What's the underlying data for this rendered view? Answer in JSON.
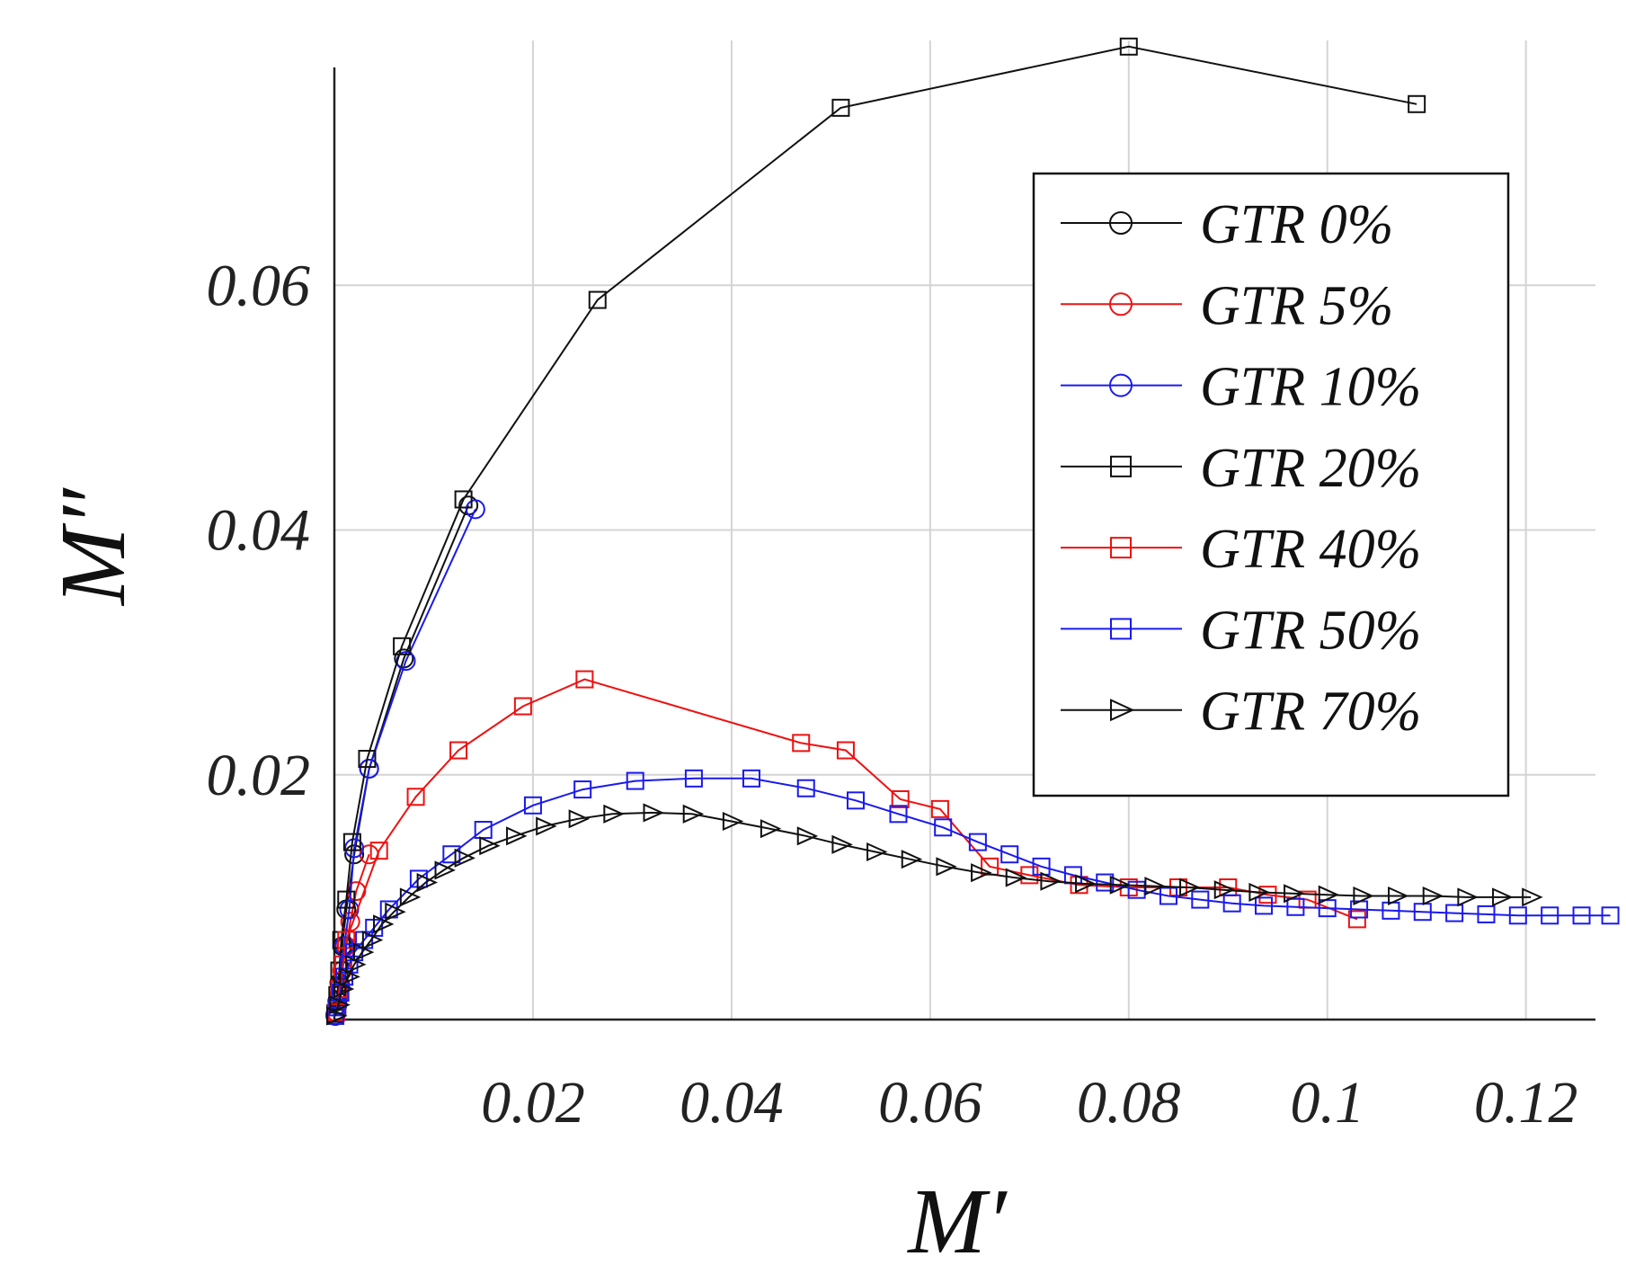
{
  "chart_data": {
    "type": "line",
    "title": "",
    "xlabel": "M′",
    "ylabel": "M″",
    "xlim": [
      0,
      0.127
    ],
    "ylim": [
      0,
      0.08
    ],
    "grid": true,
    "legend_position": "top-right",
    "xticks": [
      {
        "value": 0.02,
        "label": "0.02"
      },
      {
        "value": 0.04,
        "label": "0.04"
      },
      {
        "value": 0.06,
        "label": "0.06"
      },
      {
        "value": 0.08,
        "label": "0.08"
      },
      {
        "value": 0.1,
        "label": "0.1"
      },
      {
        "value": 0.12,
        "label": "0.12"
      }
    ],
    "yticks": [
      {
        "value": 0.02,
        "label": "0.02"
      },
      {
        "value": 0.04,
        "label": "0.04"
      },
      {
        "value": 0.06,
        "label": "0.06"
      }
    ],
    "series": [
      {
        "name": "GTR 0%",
        "color": "#111111",
        "marker": "circle",
        "points": [
          [
            0.0001,
            0.0003
          ],
          [
            0.0003,
            0.0015
          ],
          [
            0.0005,
            0.003
          ],
          [
            0.0008,
            0.006
          ],
          [
            0.0012,
            0.009
          ],
          [
            0.002,
            0.0135
          ],
          [
            0.0035,
            0.0205
          ],
          [
            0.007,
            0.0295
          ],
          [
            0.0135,
            0.042
          ]
        ]
      },
      {
        "name": "GTR 5%",
        "color": "#ee1111",
        "marker": "circle",
        "points": [
          [
            0.0002,
            0.0006
          ],
          [
            0.0005,
            0.002
          ],
          [
            0.0008,
            0.004
          ],
          [
            0.0012,
            0.006
          ],
          [
            0.0016,
            0.008
          ],
          [
            0.0022,
            0.0105
          ],
          [
            0.0035,
            0.0135
          ]
        ]
      },
      {
        "name": "GTR 10%",
        "color": "#1a1aee",
        "marker": "circle",
        "points": [
          [
            0.0001,
            0.0004
          ],
          [
            0.0003,
            0.0012
          ],
          [
            0.0006,
            0.0028
          ],
          [
            0.001,
            0.006
          ],
          [
            0.0015,
            0.009
          ],
          [
            0.002,
            0.014
          ],
          [
            0.0035,
            0.0205
          ],
          [
            0.0072,
            0.0293
          ],
          [
            0.0142,
            0.0417
          ]
        ]
      },
      {
        "name": "GTR 20%",
        "color": "#111111",
        "marker": "square",
        "points": [
          [
            0.0001,
            0.0005
          ],
          [
            0.0003,
            0.002
          ],
          [
            0.0005,
            0.004
          ],
          [
            0.0007,
            0.0065
          ],
          [
            0.0012,
            0.0098
          ],
          [
            0.0018,
            0.0145
          ],
          [
            0.0033,
            0.0213
          ],
          [
            0.0068,
            0.0305
          ],
          [
            0.013,
            0.0425
          ],
          [
            0.0265,
            0.0588
          ],
          [
            0.051,
            0.0745
          ],
          [
            0.08,
            0.0795
          ],
          [
            0.109,
            0.0748
          ]
        ]
      },
      {
        "name": "GTR 40%",
        "color": "#ee1111",
        "marker": "square",
        "points": [
          [
            0.0002,
            0.0006
          ],
          [
            0.0005,
            0.0025
          ],
          [
            0.0009,
            0.0045
          ],
          [
            0.0012,
            0.0065
          ],
          [
            0.0045,
            0.0138
          ],
          [
            0.0082,
            0.0182
          ],
          [
            0.0125,
            0.022
          ],
          [
            0.019,
            0.0256
          ],
          [
            0.0252,
            0.0278
          ],
          [
            0.047,
            0.0226
          ],
          [
            0.0515,
            0.022
          ],
          [
            0.057,
            0.018
          ],
          [
            0.061,
            0.0172
          ],
          [
            0.066,
            0.0125
          ],
          [
            0.07,
            0.0118
          ],
          [
            0.075,
            0.011
          ],
          [
            0.08,
            0.0108
          ],
          [
            0.085,
            0.0108
          ],
          [
            0.09,
            0.0108
          ],
          [
            0.094,
            0.0102
          ],
          [
            0.098,
            0.0098
          ],
          [
            0.103,
            0.0082
          ]
        ]
      },
      {
        "name": "GTR 50%",
        "color": "#1a1aee",
        "marker": "square",
        "points": [
          [
            0.0001,
            0.0003
          ],
          [
            0.0003,
            0.001
          ],
          [
            0.0006,
            0.0022
          ],
          [
            0.001,
            0.0035
          ],
          [
            0.0015,
            0.0045
          ],
          [
            0.002,
            0.0055
          ],
          [
            0.003,
            0.0065
          ],
          [
            0.004,
            0.0075
          ],
          [
            0.0055,
            0.009
          ],
          [
            0.0085,
            0.0115
          ],
          [
            0.0118,
            0.0135
          ],
          [
            0.015,
            0.0155
          ],
          [
            0.02,
            0.0175
          ],
          [
            0.025,
            0.0188
          ],
          [
            0.0303,
            0.0195
          ],
          [
            0.0362,
            0.0197
          ],
          [
            0.042,
            0.0197
          ],
          [
            0.0475,
            0.0189
          ],
          [
            0.0525,
            0.0179
          ],
          [
            0.0568,
            0.0168
          ],
          [
            0.0613,
            0.0157
          ],
          [
            0.0648,
            0.0145
          ],
          [
            0.068,
            0.0135
          ],
          [
            0.0712,
            0.0125
          ],
          [
            0.0744,
            0.0118
          ],
          [
            0.0776,
            0.0112
          ],
          [
            0.0808,
            0.0106
          ],
          [
            0.084,
            0.0101
          ],
          [
            0.0872,
            0.0098
          ],
          [
            0.0904,
            0.0095
          ],
          [
            0.0936,
            0.0093
          ],
          [
            0.0968,
            0.0092
          ],
          [
            0.1,
            0.0091
          ],
          [
            0.1032,
            0.009
          ],
          [
            0.1064,
            0.0089
          ],
          [
            0.1096,
            0.0088
          ],
          [
            0.1128,
            0.0087
          ],
          [
            0.116,
            0.0086
          ],
          [
            0.1192,
            0.0085
          ],
          [
            0.1224,
            0.0085
          ],
          [
            0.1256,
            0.0085
          ],
          [
            0.1285,
            0.0085
          ]
        ]
      },
      {
        "name": "GTR 70%",
        "color": "#111111",
        "marker": "triangle-right",
        "points": [
          [
            0.0001,
            0.0003
          ],
          [
            0.0004,
            0.0012
          ],
          [
            0.0008,
            0.0025
          ],
          [
            0.0014,
            0.0035
          ],
          [
            0.002,
            0.0045
          ],
          [
            0.0028,
            0.0055
          ],
          [
            0.0037,
            0.0065
          ],
          [
            0.0048,
            0.0078
          ],
          [
            0.006,
            0.0088
          ],
          [
            0.0075,
            0.01
          ],
          [
            0.0092,
            0.0112
          ],
          [
            0.011,
            0.0122
          ],
          [
            0.013,
            0.0132
          ],
          [
            0.0155,
            0.0142
          ],
          [
            0.0182,
            0.015
          ],
          [
            0.0212,
            0.0158
          ],
          [
            0.0245,
            0.0164
          ],
          [
            0.028,
            0.0168
          ],
          [
            0.032,
            0.0169
          ],
          [
            0.036,
            0.0168
          ],
          [
            0.04,
            0.0162
          ],
          [
            0.0438,
            0.0156
          ],
          [
            0.0475,
            0.015
          ],
          [
            0.051,
            0.0143
          ],
          [
            0.0545,
            0.0137
          ],
          [
            0.058,
            0.0131
          ],
          [
            0.0615,
            0.0125
          ],
          [
            0.065,
            0.012
          ],
          [
            0.0685,
            0.0116
          ],
          [
            0.072,
            0.0113
          ],
          [
            0.0755,
            0.0111
          ],
          [
            0.079,
            0.011
          ],
          [
            0.0825,
            0.0109
          ],
          [
            0.086,
            0.0108
          ],
          [
            0.0895,
            0.0106
          ],
          [
            0.093,
            0.0104
          ],
          [
            0.0965,
            0.0103
          ],
          [
            0.1,
            0.0102
          ],
          [
            0.1035,
            0.0101
          ],
          [
            0.107,
            0.0101
          ],
          [
            0.1105,
            0.0101
          ],
          [
            0.114,
            0.01
          ],
          [
            0.1175,
            0.01
          ],
          [
            0.1205,
            0.01
          ]
        ]
      }
    ]
  }
}
